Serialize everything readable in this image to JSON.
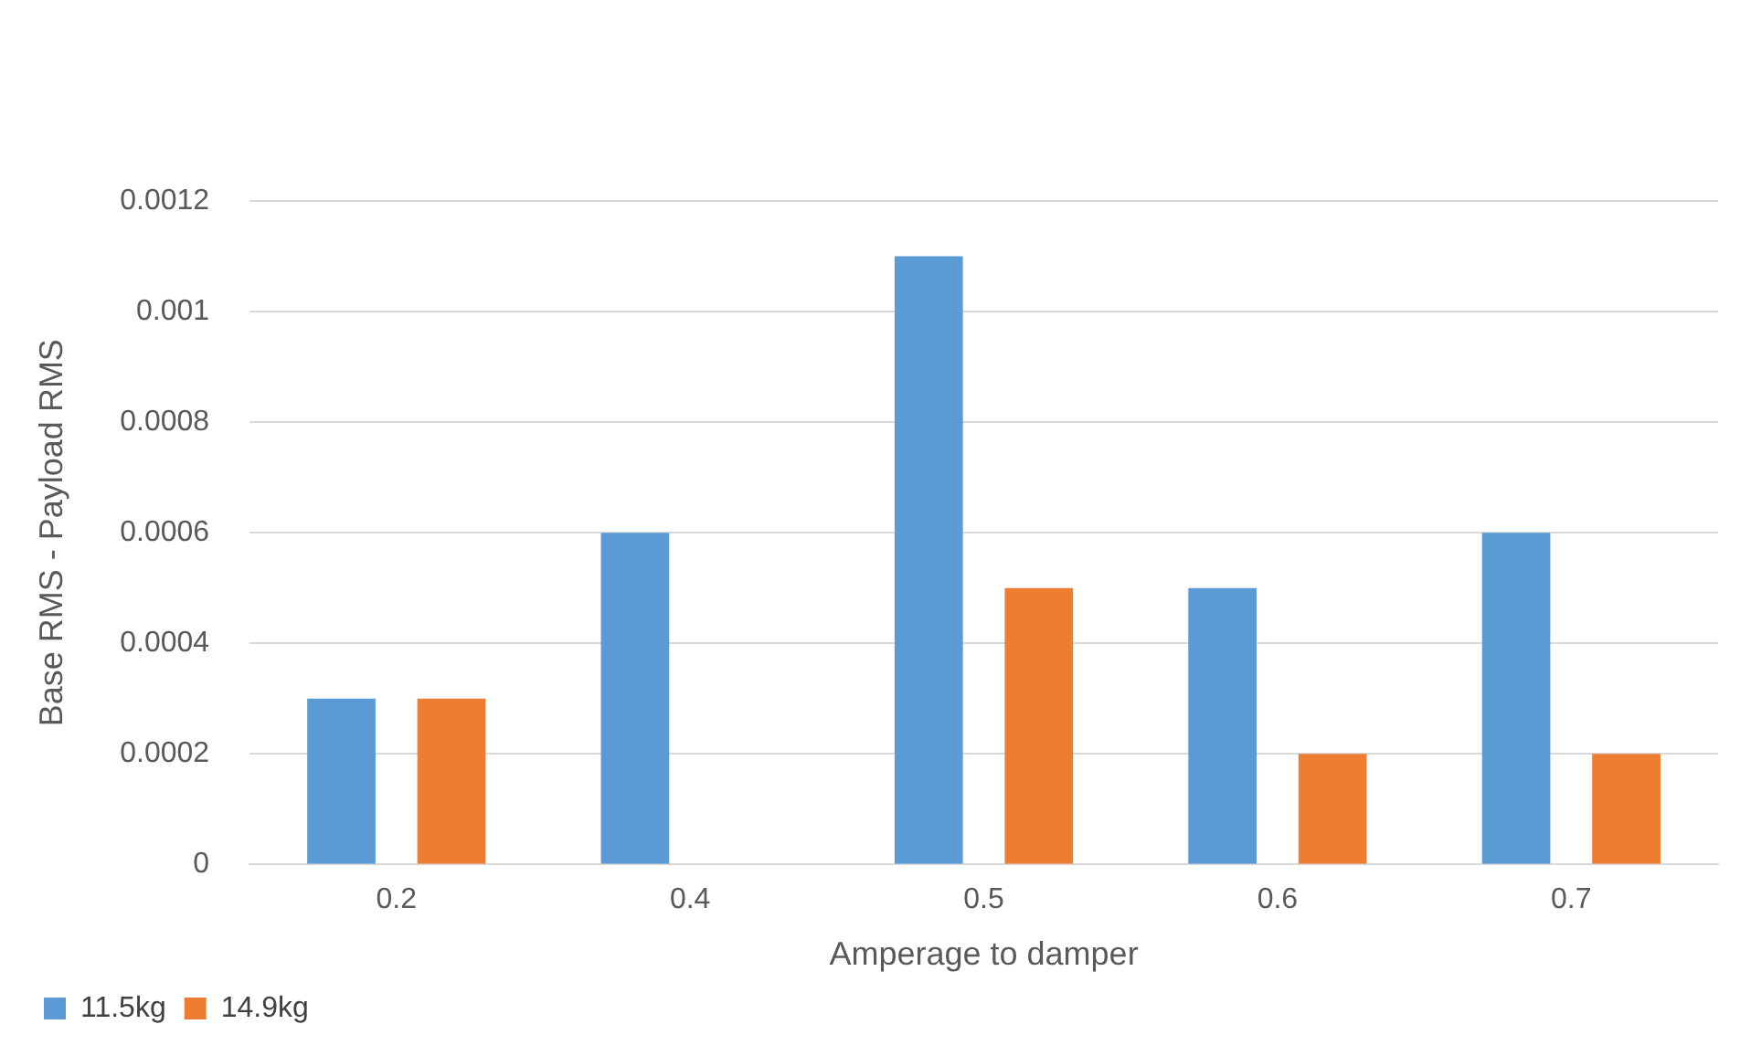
{
  "chart_data": {
    "type": "bar",
    "xlabel": "Amperage to damper",
    "ylabel": "Base RMS - Payload RMS",
    "categories": [
      "0.2",
      "0.4",
      "0.5",
      "0.6",
      "0.7"
    ],
    "series": [
      {
        "name": "11.5kg",
        "color": "#5b9bd5",
        "values": [
          0.0003,
          0.0006,
          0.0011,
          0.0005,
          0.0006
        ]
      },
      {
        "name": "14.9kg",
        "color": "#ed7d31",
        "values": [
          0.0003,
          null,
          0.0005,
          0.0002,
          0.0002
        ]
      }
    ],
    "ylim": [
      0,
      0.0012
    ],
    "yticks": [
      0,
      0.0002,
      0.0004,
      0.0006,
      0.0008,
      0.001,
      0.0012
    ],
    "grid": "y",
    "legend": "bottom left"
  }
}
